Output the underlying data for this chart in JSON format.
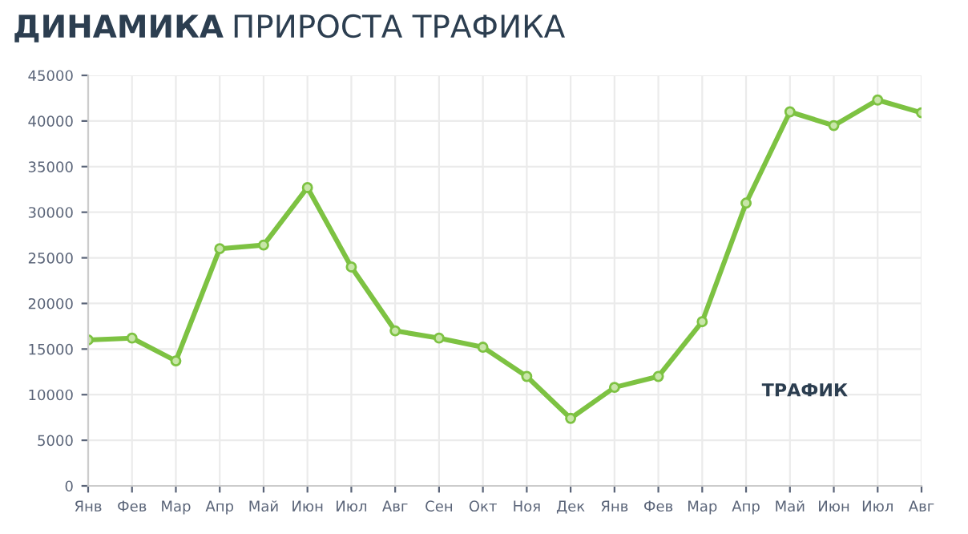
{
  "chart_data": {
    "type": "line",
    "title": "ДИНАМИКА ПРИРОСТА ТРАФИКА",
    "categories": [
      "Янв",
      "Фев",
      "Мар",
      "Апр",
      "Май",
      "Июн",
      "Июл",
      "Авг",
      "Сен",
      "Окт",
      "Ноя",
      "Дек",
      "Янв",
      "Фев",
      "Мар",
      "Апр",
      "Май",
      "Июн",
      "Июл",
      "Авг"
    ],
    "series": [
      {
        "name": "ТРАФИК",
        "color": "#7dc242",
        "values": [
          16000,
          16200,
          13700,
          26000,
          26400,
          32700,
          24000,
          17000,
          16200,
          15200,
          12000,
          7400,
          10800,
          12000,
          18000,
          31000,
          41000,
          39500,
          42300,
          40900
        ]
      }
    ],
    "ylim": [
      0,
      45000
    ],
    "yticks": [
      0,
      5000,
      10000,
      15000,
      20000,
      25000,
      30000,
      35000,
      40000,
      45000
    ],
    "grid": true,
    "marker": "circle",
    "line_style": "solid",
    "legend": false
  }
}
